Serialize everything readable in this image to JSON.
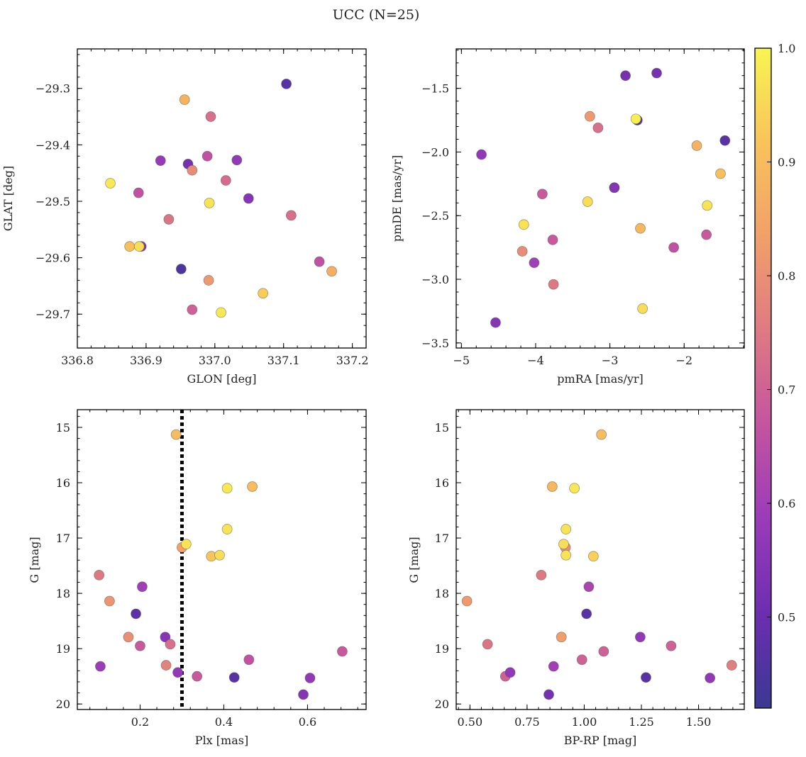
{
  "figure": {
    "title": "UCC (N=25)"
  },
  "colorbar": {
    "range": [
      0.42,
      1.0
    ],
    "ticks": [
      0.5,
      0.6,
      0.7,
      0.8,
      0.9,
      1.0
    ],
    "tick_labels": [
      "0.5",
      "0.6",
      "0.7",
      "0.8",
      "0.9",
      "1.0"
    ],
    "colormap": "plasma",
    "ramp": [
      "#3b3893",
      "#6c2eb0",
      "#9a3bb9",
      "#c454a0",
      "#de7a82",
      "#f1a06a",
      "#f9c35a",
      "#f8f552"
    ]
  },
  "chart_data": [
    {
      "type": "scatter",
      "title": "",
      "xlabel": "GLON [deg]",
      "ylabel": "GLAT [deg]",
      "xlim": [
        336.8,
        337.22
      ],
      "ylim": [
        -29.76,
        -29.23
      ],
      "y_inverted": false,
      "grid": false,
      "xticks": [
        336.8,
        336.9,
        337.0,
        337.1,
        337.2
      ],
      "xtick_labels": [
        "336.8",
        "336.9",
        "337.0",
        "337.1",
        "337.2"
      ],
      "yticks": [
        -29.3,
        -29.4,
        -29.5,
        -29.6,
        -29.7
      ],
      "ytick_labels": [
        "−29.3",
        "−29.4",
        "−29.5",
        "−29.6",
        "−29.7"
      ],
      "guides": [],
      "points": [
        {
          "x": 336.848,
          "y": -29.468,
          "c": 0.98
        },
        {
          "x": 336.876,
          "y": -29.58,
          "c": 0.91
        },
        {
          "x": 336.889,
          "y": -29.485,
          "c": 0.66
        },
        {
          "x": 336.893,
          "y": -29.58,
          "c": 0.55
        },
        {
          "x": 336.89,
          "y": -29.58,
          "c": 0.96
        },
        {
          "x": 336.921,
          "y": -29.428,
          "c": 0.58
        },
        {
          "x": 336.933,
          "y": -29.532,
          "c": 0.74
        },
        {
          "x": 336.951,
          "y": -29.62,
          "c": 0.45
        },
        {
          "x": 336.956,
          "y": -29.32,
          "c": 0.88
        },
        {
          "x": 336.961,
          "y": -29.434,
          "c": 0.52
        },
        {
          "x": 336.967,
          "y": -29.445,
          "c": 0.79
        },
        {
          "x": 336.967,
          "y": -29.692,
          "c": 0.7
        },
        {
          "x": 336.989,
          "y": -29.42,
          "c": 0.66
        },
        {
          "x": 336.991,
          "y": -29.64,
          "c": 0.82
        },
        {
          "x": 336.992,
          "y": -29.503,
          "c": 0.97
        },
        {
          "x": 336.994,
          "y": -29.35,
          "c": 0.73
        },
        {
          "x": 337.009,
          "y": -29.697,
          "c": 0.98
        },
        {
          "x": 337.016,
          "y": -29.463,
          "c": 0.72
        },
        {
          "x": 337.032,
          "y": -29.427,
          "c": 0.57
        },
        {
          "x": 337.049,
          "y": -29.495,
          "c": 0.55
        },
        {
          "x": 337.07,
          "y": -29.663,
          "c": 0.93
        },
        {
          "x": 337.104,
          "y": -29.292,
          "c": 0.47
        },
        {
          "x": 337.111,
          "y": -29.525,
          "c": 0.73
        },
        {
          "x": 337.152,
          "y": -29.607,
          "c": 0.66
        },
        {
          "x": 337.17,
          "y": -29.624,
          "c": 0.87
        }
      ]
    },
    {
      "type": "scatter",
      "title": "",
      "xlabel": "pmRA [mas/yr]",
      "ylabel": "pmDE [mas/yr]",
      "xlim": [
        -5.07,
        -1.19
      ],
      "ylim": [
        -3.54,
        -1.19
      ],
      "y_inverted": false,
      "grid": false,
      "xticks": [
        -5,
        -4,
        -3,
        -2
      ],
      "xtick_labels": [
        "−5",
        "−4",
        "−3",
        "−2"
      ],
      "yticks": [
        -1.5,
        -2.0,
        -2.5,
        -3.0,
        -3.5
      ],
      "ytick_labels": [
        "−1.5",
        "−2.0",
        "−2.5",
        "−3.0",
        "−3.5"
      ],
      "guides": [],
      "points": [
        {
          "x": -4.73,
          "y": -2.02,
          "c": 0.57
        },
        {
          "x": -4.54,
          "y": -3.34,
          "c": 0.55
        },
        {
          "x": -4.16,
          "y": -2.57,
          "c": 0.97
        },
        {
          "x": -4.18,
          "y": -2.78,
          "c": 0.79
        },
        {
          "x": -4.02,
          "y": -2.87,
          "c": 0.6
        },
        {
          "x": -3.91,
          "y": -2.33,
          "c": 0.68
        },
        {
          "x": -3.77,
          "y": -2.69,
          "c": 0.68
        },
        {
          "x": -3.76,
          "y": -3.04,
          "c": 0.75
        },
        {
          "x": -3.3,
          "y": -2.39,
          "c": 0.96
        },
        {
          "x": -3.27,
          "y": -1.72,
          "c": 0.82
        },
        {
          "x": -3.16,
          "y": -1.81,
          "c": 0.73
        },
        {
          "x": -2.94,
          "y": -2.28,
          "c": 0.7
        },
        {
          "x": -2.94,
          "y": -2.28,
          "c": 0.55
        },
        {
          "x": -2.79,
          "y": -1.4,
          "c": 0.52
        },
        {
          "x": -2.63,
          "y": -1.75,
          "c": 0.47
        },
        {
          "x": -2.65,
          "y": -1.74,
          "c": 0.99
        },
        {
          "x": -2.59,
          "y": -2.6,
          "c": 0.89
        },
        {
          "x": -2.56,
          "y": -3.23,
          "c": 0.96
        },
        {
          "x": -2.37,
          "y": -1.38,
          "c": 0.52
        },
        {
          "x": -2.14,
          "y": -2.75,
          "c": 0.66
        },
        {
          "x": -1.83,
          "y": -1.95,
          "c": 0.88
        },
        {
          "x": -1.7,
          "y": -2.65,
          "c": 0.68
        },
        {
          "x": -1.69,
          "y": -2.42,
          "c": 0.97
        },
        {
          "x": -1.51,
          "y": -2.17,
          "c": 0.91
        },
        {
          "x": -1.45,
          "y": -1.91,
          "c": 0.47
        }
      ]
    },
    {
      "type": "scatter",
      "title": "",
      "xlabel": "Plx [mas]",
      "ylabel": "G [mag]",
      "xlim": [
        0.05,
        0.74
      ],
      "ylim": [
        14.68,
        20.1
      ],
      "y_inverted": true,
      "grid": false,
      "xticks": [
        0.2,
        0.4,
        0.6
      ],
      "xtick_labels": [
        "0.2",
        "0.4",
        "0.6"
      ],
      "yticks": [
        15,
        16,
        17,
        18,
        19,
        20
      ],
      "ytick_labels": [
        "15",
        "16",
        "17",
        "18",
        "19",
        "20"
      ],
      "guides": [
        {
          "axis": "x",
          "value": 0.3,
          "style": "dotted"
        }
      ],
      "points": [
        {
          "x": 0.102,
          "y": 17.67,
          "c": 0.75
        },
        {
          "x": 0.105,
          "y": 19.32,
          "c": 0.59
        },
        {
          "x": 0.127,
          "y": 18.14,
          "c": 0.81
        },
        {
          "x": 0.172,
          "y": 18.79,
          "c": 0.8
        },
        {
          "x": 0.19,
          "y": 18.37,
          "c": 0.48
        },
        {
          "x": 0.2,
          "y": 18.95,
          "c": 0.68
        },
        {
          "x": 0.205,
          "y": 17.88,
          "c": 0.6
        },
        {
          "x": 0.26,
          "y": 18.79,
          "c": 0.55
        },
        {
          "x": 0.262,
          "y": 19.3,
          "c": 0.77
        },
        {
          "x": 0.272,
          "y": 18.92,
          "c": 0.73
        },
        {
          "x": 0.286,
          "y": 15.13,
          "c": 0.9
        },
        {
          "x": 0.29,
          "y": 19.43,
          "c": 0.57
        },
        {
          "x": 0.3,
          "y": 17.17,
          "c": 0.84
        },
        {
          "x": 0.31,
          "y": 17.11,
          "c": 0.97
        },
        {
          "x": 0.336,
          "y": 19.5,
          "c": 0.68
        },
        {
          "x": 0.37,
          "y": 17.33,
          "c": 0.92
        },
        {
          "x": 0.39,
          "y": 17.31,
          "c": 0.96
        },
        {
          "x": 0.408,
          "y": 16.1,
          "c": 0.98
        },
        {
          "x": 0.408,
          "y": 16.84,
          "c": 0.97
        },
        {
          "x": 0.425,
          "y": 19.52,
          "c": 0.47
        },
        {
          "x": 0.46,
          "y": 19.2,
          "c": 0.66
        },
        {
          "x": 0.468,
          "y": 16.07,
          "c": 0.9
        },
        {
          "x": 0.59,
          "y": 19.83,
          "c": 0.55
        },
        {
          "x": 0.606,
          "y": 19.53,
          "c": 0.57
        },
        {
          "x": 0.683,
          "y": 19.05,
          "c": 0.68
        }
      ]
    },
    {
      "type": "scatter",
      "title": "",
      "xlabel": "BP-RP [mag]",
      "ylabel": "G [mag]",
      "xlim": [
        0.44,
        1.7
      ],
      "ylim": [
        14.68,
        20.1
      ],
      "y_inverted": true,
      "grid": false,
      "xticks": [
        0.5,
        0.75,
        1.0,
        1.25,
        1.5
      ],
      "xtick_labels": [
        "0.50",
        "0.75",
        "1.00",
        "1.25",
        "1.50"
      ],
      "yticks": [
        15,
        16,
        17,
        18,
        19,
        20
      ],
      "ytick_labels": [
        "15",
        "16",
        "17",
        "18",
        "19",
        "20"
      ],
      "guides": [],
      "points": [
        {
          "x": 0.487,
          "y": 18.14,
          "c": 0.82
        },
        {
          "x": 0.577,
          "y": 18.92,
          "c": 0.74
        },
        {
          "x": 0.655,
          "y": 19.5,
          "c": 0.7
        },
        {
          "x": 0.676,
          "y": 19.43,
          "c": 0.57
        },
        {
          "x": 0.812,
          "y": 17.67,
          "c": 0.75
        },
        {
          "x": 0.845,
          "y": 19.83,
          "c": 0.52
        },
        {
          "x": 0.86,
          "y": 16.07,
          "c": 0.89
        },
        {
          "x": 0.866,
          "y": 19.32,
          "c": 0.6
        },
        {
          "x": 0.9,
          "y": 18.79,
          "c": 0.83
        },
        {
          "x": 0.918,
          "y": 17.17,
          "c": 0.8
        },
        {
          "x": 0.91,
          "y": 17.11,
          "c": 0.96
        },
        {
          "x": 0.92,
          "y": 16.84,
          "c": 0.97
        },
        {
          "x": 0.92,
          "y": 17.31,
          "c": 0.97
        },
        {
          "x": 0.957,
          "y": 16.1,
          "c": 0.98
        },
        {
          "x": 0.99,
          "y": 19.2,
          "c": 0.7
        },
        {
          "x": 1.01,
          "y": 18.37,
          "c": 0.47
        },
        {
          "x": 1.02,
          "y": 17.88,
          "c": 0.62
        },
        {
          "x": 1.04,
          "y": 17.33,
          "c": 0.94
        },
        {
          "x": 1.075,
          "y": 15.13,
          "c": 0.9
        },
        {
          "x": 1.085,
          "y": 19.05,
          "c": 0.7
        },
        {
          "x": 1.245,
          "y": 18.79,
          "c": 0.57
        },
        {
          "x": 1.27,
          "y": 19.52,
          "c": 0.47
        },
        {
          "x": 1.38,
          "y": 18.95,
          "c": 0.7
        },
        {
          "x": 1.55,
          "y": 19.53,
          "c": 0.57
        },
        {
          "x": 1.645,
          "y": 19.3,
          "c": 0.76
        }
      ]
    }
  ]
}
